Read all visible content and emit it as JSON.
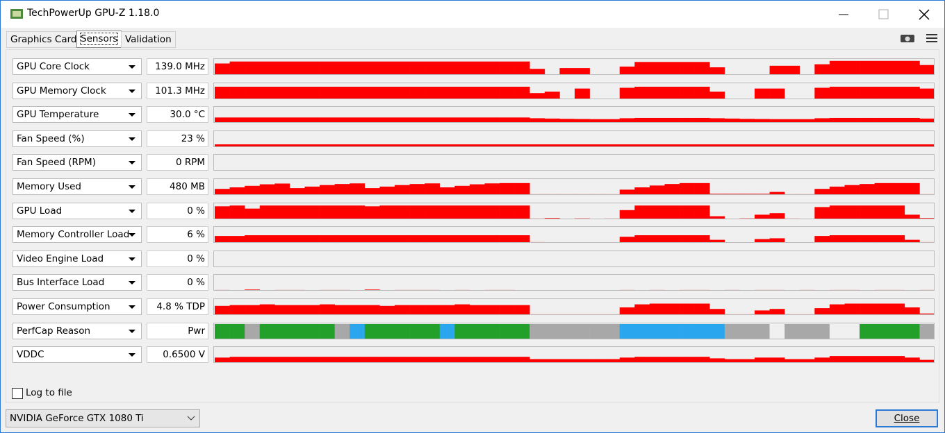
{
  "window": {
    "title": "TechPowerUp GPU-Z 1.18.0"
  },
  "tabs": [
    "Graphics Card",
    "Sensors",
    "Validation"
  ],
  "graph_color": "#ff0000",
  "sensors": [
    {
      "name": "GPU Core Clock",
      "reading": "139.0 MHz",
      "graph": [
        75,
        88,
        88,
        88,
        88,
        88,
        88,
        88,
        88,
        88,
        88,
        88,
        88,
        88,
        88,
        88,
        88,
        88,
        88,
        88,
        88,
        40,
        0,
        45,
        45,
        0,
        0,
        55,
        85,
        85,
        85,
        85,
        85,
        50,
        0,
        0,
        0,
        60,
        60,
        0,
        70,
        92,
        92,
        92,
        92,
        92,
        92,
        65
      ]
    },
    {
      "name": "GPU Memory Clock",
      "reading": "101.3 MHz",
      "graph": [
        82,
        82,
        82,
        82,
        82,
        82,
        82,
        82,
        82,
        82,
        82,
        82,
        82,
        82,
        82,
        82,
        82,
        82,
        82,
        82,
        82,
        40,
        50,
        0,
        70,
        0,
        0,
        75,
        82,
        82,
        82,
        82,
        82,
        50,
        0,
        0,
        70,
        70,
        0,
        0,
        75,
        82,
        82,
        82,
        82,
        82,
        82,
        70
      ]
    },
    {
      "name": "GPU Temperature",
      "reading": "30.0 °C",
      "graph": [
        35,
        35,
        35,
        35,
        35,
        35,
        35,
        35,
        35,
        35,
        35,
        35,
        35,
        35,
        35,
        35,
        35,
        35,
        35,
        35,
        35,
        30,
        28,
        26,
        25,
        24,
        24,
        30,
        32,
        32,
        32,
        32,
        32,
        30,
        28,
        26,
        25,
        24,
        24,
        24,
        30,
        32,
        32,
        32,
        32,
        32,
        32,
        28
      ]
    },
    {
      "name": "Fan Speed (%)",
      "reading": "23 %",
      "graph": [
        18,
        18,
        18,
        18,
        18,
        18,
        18,
        18,
        18,
        18,
        18,
        18,
        18,
        18,
        18,
        18,
        18,
        18,
        18,
        18,
        18,
        18,
        18,
        18,
        18,
        18,
        18,
        18,
        18,
        18,
        18,
        18,
        18,
        18,
        18,
        18,
        18,
        18,
        18,
        18,
        18,
        18,
        18,
        18,
        18,
        18,
        18,
        18
      ]
    },
    {
      "name": "Fan Speed (RPM)",
      "reading": "0 RPM",
      "graph": [
        0,
        0,
        0,
        0,
        0,
        0,
        0,
        0,
        0,
        0,
        0,
        0,
        0,
        0,
        0,
        0,
        0,
        0,
        0,
        0,
        0,
        0,
        0,
        0,
        0,
        0,
        0,
        0,
        0,
        0,
        0,
        0,
        0,
        0,
        0,
        0,
        0,
        0,
        0,
        0,
        0,
        0,
        0,
        0,
        0,
        0,
        0,
        0
      ]
    },
    {
      "name": "Memory Used",
      "reading": "480 MB",
      "graph": [
        40,
        50,
        60,
        70,
        75,
        45,
        55,
        65,
        72,
        76,
        45,
        55,
        65,
        72,
        76,
        50,
        60,
        70,
        76,
        78,
        78,
        5,
        5,
        5,
        5,
        5,
        5,
        35,
        50,
        62,
        72,
        78,
        78,
        8,
        8,
        8,
        8,
        20,
        5,
        5,
        40,
        55,
        65,
        72,
        78,
        78,
        78,
        5
      ]
    },
    {
      "name": "GPU Load",
      "reading": "0 %",
      "graph": [
        85,
        90,
        70,
        90,
        90,
        90,
        90,
        90,
        90,
        90,
        85,
        90,
        90,
        90,
        90,
        90,
        90,
        90,
        90,
        90,
        90,
        5,
        8,
        3,
        6,
        4,
        5,
        60,
        90,
        90,
        90,
        90,
        90,
        20,
        4,
        6,
        30,
        40,
        5,
        3,
        80,
        90,
        90,
        90,
        90,
        90,
        30,
        8
      ]
    },
    {
      "name": "Memory Controller Load",
      "reading": "6 %",
      "graph": [
        45,
        45,
        50,
        50,
        50,
        50,
        50,
        50,
        50,
        50,
        50,
        50,
        50,
        50,
        50,
        50,
        50,
        50,
        50,
        50,
        50,
        5,
        3,
        4,
        2,
        3,
        3,
        40,
        50,
        50,
        50,
        50,
        50,
        20,
        3,
        4,
        25,
        30,
        3,
        3,
        45,
        50,
        50,
        50,
        50,
        50,
        20,
        5
      ]
    },
    {
      "name": "Video Engine Load",
      "reading": "0 %",
      "graph": [
        0,
        0,
        0,
        0,
        0,
        0,
        0,
        0,
        0,
        0,
        0,
        0,
        0,
        0,
        0,
        0,
        0,
        0,
        0,
        0,
        0,
        0,
        0,
        0,
        0,
        0,
        0,
        0,
        0,
        0,
        0,
        0,
        0,
        0,
        0,
        0,
        0,
        0,
        0,
        0,
        0,
        0,
        0,
        0,
        0,
        0,
        0,
        0
      ]
    },
    {
      "name": "Bus Interface Load",
      "reading": "0 %",
      "graph": [
        5,
        0,
        8,
        0,
        5,
        5,
        0,
        5,
        5,
        0,
        8,
        0,
        5,
        5,
        5,
        0,
        5,
        0,
        5,
        5,
        0,
        0,
        0,
        0,
        0,
        0,
        0,
        5,
        0,
        5,
        0,
        5,
        5,
        0,
        5,
        0,
        5,
        5,
        0,
        5,
        0,
        5,
        5,
        0,
        5,
        5,
        0,
        5
      ]
    },
    {
      "name": "Power Consumption",
      "reading": "4.8 % TDP",
      "graph": [
        60,
        65,
        65,
        70,
        65,
        65,
        65,
        70,
        65,
        65,
        65,
        60,
        65,
        65,
        65,
        65,
        70,
        65,
        65,
        65,
        65,
        5,
        5,
        5,
        5,
        5,
        5,
        50,
        70,
        75,
        75,
        75,
        75,
        40,
        5,
        5,
        30,
        40,
        5,
        5,
        45,
        70,
        75,
        75,
        75,
        75,
        50,
        10
      ]
    },
    {
      "name": "PerfCap Reason",
      "reading": "Pwr",
      "graph": [
        "#22a02a",
        "#22a02a",
        "#a8a8a8",
        "#22a02a",
        "#22a02a",
        "#22a02a",
        "#22a02a",
        "#22a02a",
        "#a8a8a8",
        "#2aa6ee",
        "#22a02a",
        "#22a02a",
        "#22a02a",
        "#22a02a",
        "#22a02a",
        "#2aa6ee",
        "#22a02a",
        "#22a02a",
        "#22a02a",
        "#22a02a",
        "#22a02a",
        "#a8a8a8",
        "#a8a8a8",
        "#a8a8a8",
        "#a8a8a8",
        "#a8a8a8",
        "#a8a8a8",
        "#2aa6ee",
        "#2aa6ee",
        "#2aa6ee",
        "#2aa6ee",
        "#2aa6ee",
        "#2aa6ee",
        "#2aa6ee",
        "#a8a8a8",
        "#a8a8a8",
        "#a8a8a8",
        "#f0f0f0",
        "#a8a8a8",
        "#a8a8a8",
        "#a8a8a8",
        "#f0f0f0",
        "#f0f0f0",
        "#22a02a",
        "#22a02a",
        "#22a02a",
        "#22a02a",
        "#a8a8a8"
      ]
    },
    {
      "name": "VDDC",
      "reading": "0.6500 V",
      "graph": [
        35,
        40,
        40,
        40,
        40,
        40,
        40,
        40,
        40,
        40,
        40,
        40,
        40,
        40,
        40,
        40,
        40,
        40,
        40,
        40,
        40,
        25,
        25,
        25,
        25,
        25,
        25,
        35,
        40,
        40,
        40,
        40,
        40,
        30,
        25,
        25,
        35,
        35,
        25,
        25,
        35,
        45,
        45,
        45,
        45,
        45,
        35,
        20
      ]
    }
  ],
  "log_to_file": "Log to file",
  "device": "NVIDIA GeForce GTX 1080 Ti",
  "close_button": "Close"
}
